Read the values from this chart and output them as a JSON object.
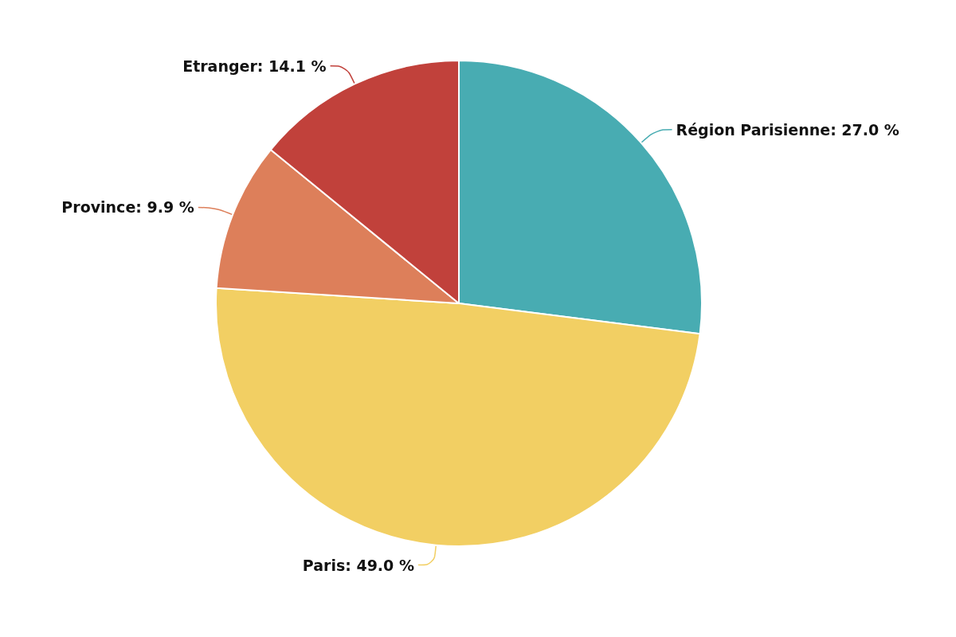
{
  "chart_data": {
    "type": "pie",
    "categories": [
      "Région Parisienne",
      "Paris",
      "Province",
      "Etranger"
    ],
    "values": [
      27.0,
      49.0,
      9.9,
      14.1
    ],
    "colors": [
      "#48acb2",
      "#f2cf63",
      "#dd7f5a",
      "#c1413b"
    ],
    "value_labels": [
      "27.0 %",
      "49.0 %",
      "9.9 %",
      "14.1 %"
    ],
    "legend": false
  }
}
